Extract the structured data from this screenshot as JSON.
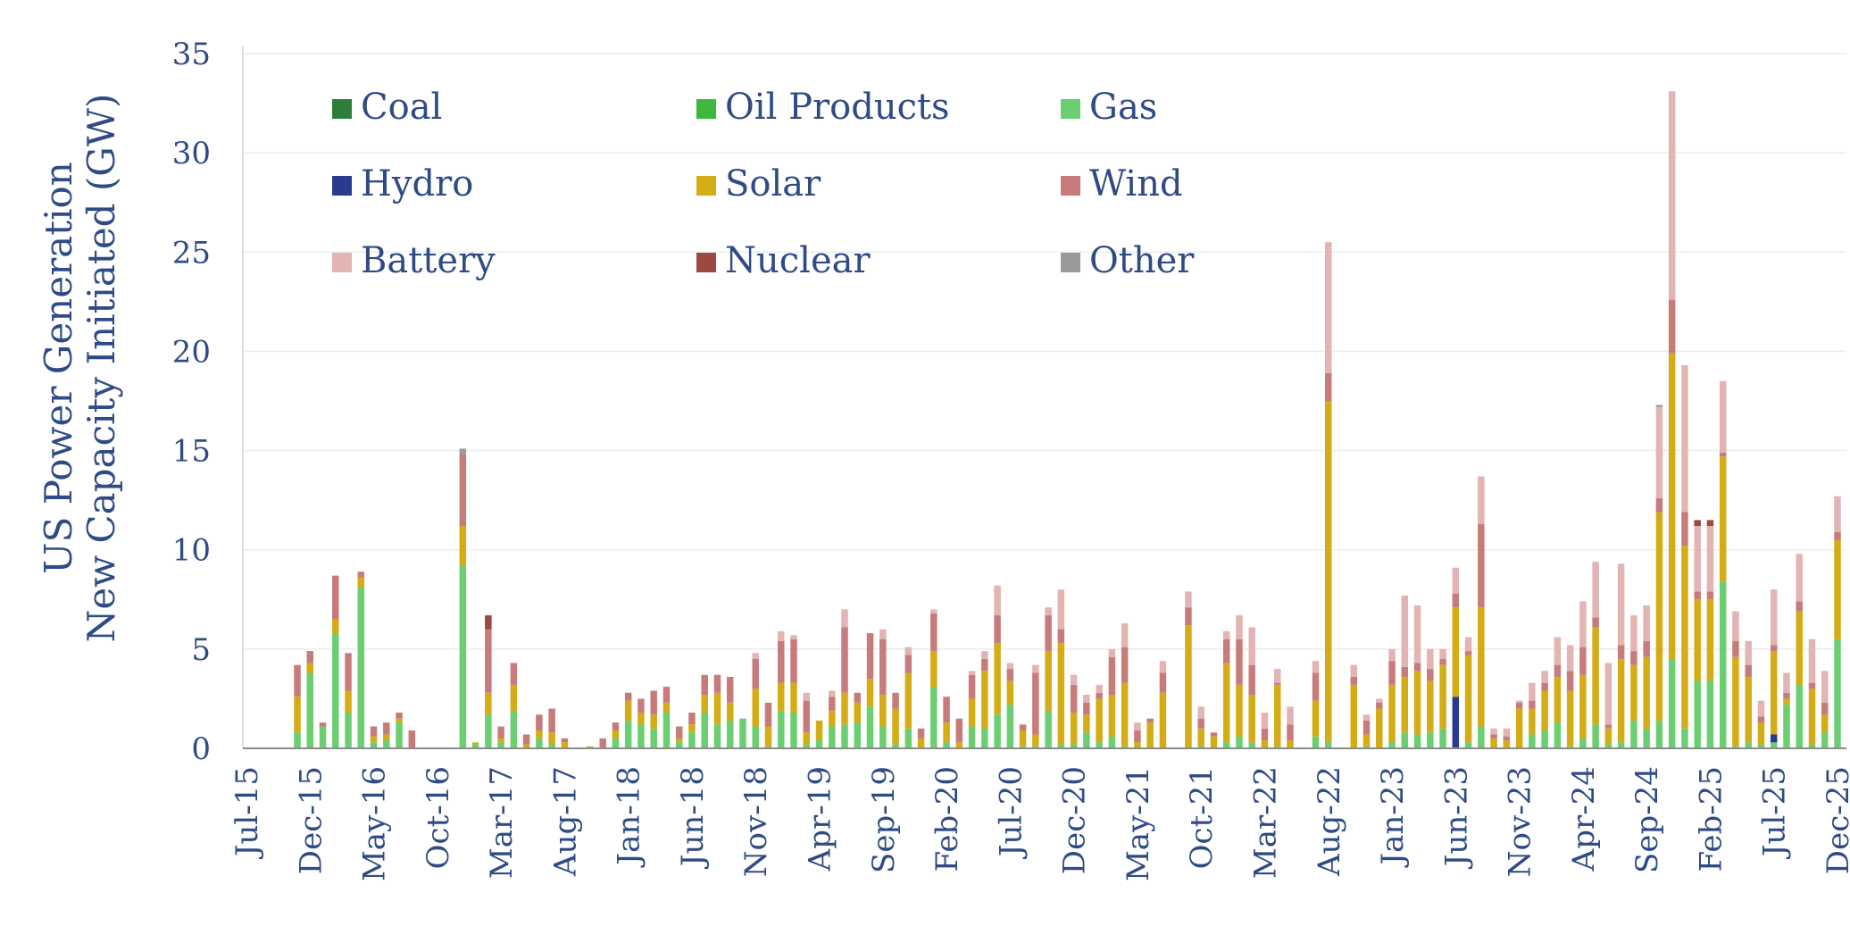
{
  "chart_data": {
    "type": "bar",
    "stacked": true,
    "ylabel": [
      "US Power Generation",
      "New Capacity Initiated (GW)"
    ],
    "ylim": [
      0,
      35
    ],
    "yticks": [
      0,
      5,
      10,
      15,
      20,
      25,
      30,
      35
    ],
    "grid": true,
    "legend_position": "top-left (inside plot area, 3 columns)",
    "x_start": "2015-07",
    "x_end": "2025-12",
    "x_ticks": [
      "Jul-15",
      "Dec-15",
      "May-16",
      "Oct-16",
      "Mar-17",
      "Aug-17",
      "Jan-18",
      "Jun-18",
      "Nov-18",
      "Apr-19",
      "Sep-19",
      "Feb-20",
      "Jul-20",
      "Dec-20",
      "May-21",
      "Oct-21",
      "Mar-22",
      "Aug-22",
      "Jan-23",
      "Jun-23",
      "Nov-23",
      "Apr-24",
      "Sep-24",
      "Feb-25",
      "Jul-25",
      "Dec-25"
    ],
    "series": [
      {
        "name": "Coal",
        "color": "#2e7d3a"
      },
      {
        "name": "Oil Products",
        "color": "#3db83d"
      },
      {
        "name": "Gas",
        "color": "#6bcf72"
      },
      {
        "name": "Hydro",
        "color": "#2a3b8f"
      },
      {
        "name": "Solar",
        "color": "#d4ac16"
      },
      {
        "name": "Wind",
        "color": "#c87b7b"
      },
      {
        "name": "Battery",
        "color": "#e2b4b4"
      },
      {
        "name": "Nuclear",
        "color": "#9b4a42"
      },
      {
        "name": "Other",
        "color": "#9a9a9a"
      }
    ],
    "bars": [
      {
        "date": "2015-11",
        "Gas": 0.8,
        "Solar": 1.8,
        "Wind": 1.6
      },
      {
        "date": "2015-12",
        "Gas": 3.8,
        "Solar": 0.5,
        "Wind": 0.6
      },
      {
        "date": "2016-01",
        "Gas": 1.1,
        "Wind": 0.2
      },
      {
        "date": "2016-02",
        "Gas": 5.8,
        "Solar": 0.7,
        "Wind": 2.2
      },
      {
        "date": "2016-03",
        "Gas": 1.8,
        "Solar": 1.1,
        "Wind": 1.9
      },
      {
        "date": "2016-04",
        "Gas": 8.1,
        "Solar": 0.5,
        "Wind": 0.3
      },
      {
        "date": "2016-05",
        "Gas": 0.3,
        "Solar": 0.3,
        "Wind": 0.5
      },
      {
        "date": "2016-06",
        "Gas": 0.4,
        "Solar": 0.3,
        "Wind": 0.6
      },
      {
        "date": "2016-07",
        "Gas": 1.3,
        "Solar": 0.2,
        "Wind": 0.3
      },
      {
        "date": "2016-08",
        "Wind": 0.9
      },
      {
        "date": "2016-12",
        "Gas": 9.2,
        "Solar": 2.0,
        "Wind": 3.6,
        "Other": 0.3
      },
      {
        "date": "2017-01",
        "Gas": 0.2,
        "Solar": 0.1
      },
      {
        "date": "2017-02",
        "Gas": 1.7,
        "Solar": 1.1,
        "Wind": 3.2,
        "Nuclear": 0.7
      },
      {
        "date": "2017-03",
        "Gas": 0.3,
        "Solar": 0.2,
        "Wind": 0.6
      },
      {
        "date": "2017-04",
        "Gas": 1.9,
        "Solar": 1.3,
        "Wind": 1.1
      },
      {
        "date": "2017-05",
        "Solar": 0.2,
        "Wind": 0.5
      },
      {
        "date": "2017-06",
        "Gas": 0.5,
        "Solar": 0.4,
        "Wind": 0.8
      },
      {
        "date": "2017-07",
        "Gas": 0.2,
        "Solar": 0.6,
        "Wind": 1.2
      },
      {
        "date": "2017-08",
        "Solar": 0.3,
        "Wind": 0.2
      },
      {
        "date": "2017-10",
        "Solar": 0.1
      },
      {
        "date": "2017-11",
        "Wind": 0.5
      },
      {
        "date": "2017-12",
        "Gas": 0.5,
        "Solar": 0.4,
        "Wind": 0.4
      },
      {
        "date": "2018-01",
        "Gas": 1.4,
        "Solar": 1.0,
        "Wind": 0.4
      },
      {
        "date": "2018-02",
        "Gas": 1.2,
        "Solar": 0.6,
        "Wind": 0.7
      },
      {
        "date": "2018-03",
        "Gas": 1.0,
        "Solar": 0.7,
        "Wind": 1.2
      },
      {
        "date": "2018-04",
        "Gas": 1.8,
        "Solar": 0.5,
        "Wind": 0.8
      },
      {
        "date": "2018-05",
        "Gas": 0.3,
        "Solar": 0.2,
        "Wind": 0.6
      },
      {
        "date": "2018-06",
        "Gas": 0.8,
        "Solar": 0.4,
        "Wind": 0.6
      },
      {
        "date": "2018-07",
        "Gas": 1.8,
        "Solar": 0.9,
        "Wind": 1.0
      },
      {
        "date": "2018-08",
        "Gas": 1.2,
        "Solar": 1.6,
        "Wind": 0.9
      },
      {
        "date": "2018-09",
        "Gas": 1.4,
        "Solar": 0.9,
        "Wind": 1.3
      },
      {
        "date": "2018-10",
        "Gas": 1.5,
        "Solar": 0.0
      },
      {
        "date": "2018-11",
        "Gas": 1.1,
        "Solar": 1.9,
        "Wind": 1.5,
        "Battery": 0.3
      },
      {
        "date": "2018-12",
        "Gas": 0.1,
        "Solar": 1.0,
        "Wind": 1.2
      },
      {
        "date": "2019-01",
        "Gas": 1.9,
        "Solar": 1.4,
        "Wind": 2.1,
        "Battery": 0.5
      },
      {
        "date": "2019-02",
        "Gas": 1.8,
        "Solar": 1.5,
        "Wind": 2.2,
        "Battery": 0.2
      },
      {
        "date": "2019-03",
        "Gas": 0.2,
        "Solar": 0.6,
        "Wind": 1.6,
        "Battery": 0.4
      },
      {
        "date": "2019-04",
        "Gas": 0.4,
        "Solar": 1.0
      },
      {
        "date": "2019-05",
        "Gas": 1.1,
        "Solar": 0.8,
        "Wind": 0.7,
        "Battery": 0.3
      },
      {
        "date": "2019-06",
        "Gas": 1.2,
        "Solar": 1.6,
        "Wind": 3.3,
        "Battery": 0.9
      },
      {
        "date": "2019-07",
        "Gas": 1.3,
        "Solar": 1.0,
        "Wind": 0.5
      },
      {
        "date": "2019-08",
        "Gas": 2.1,
        "Solar": 1.4,
        "Wind": 2.3
      },
      {
        "date": "2019-09",
        "Gas": 1.1,
        "Solar": 1.6,
        "Wind": 2.8,
        "Battery": 0.5
      },
      {
        "date": "2019-10",
        "Gas": 0.2,
        "Solar": 1.8,
        "Wind": 0.8
      },
      {
        "date": "2019-11",
        "Gas": 1.0,
        "Solar": 2.8,
        "Wind": 0.9,
        "Battery": 0.4
      },
      {
        "date": "2019-12",
        "Solar": 0.5,
        "Wind": 0.5
      },
      {
        "date": "2020-01",
        "Gas": 3.1,
        "Solar": 1.8,
        "Wind": 1.9,
        "Battery": 0.2
      },
      {
        "date": "2020-02",
        "Gas": 0.3,
        "Solar": 1.0,
        "Wind": 1.3
      },
      {
        "date": "2020-03",
        "Solar": 0.3,
        "Wind": 1.2
      },
      {
        "date": "2020-04",
        "Gas": 1.1,
        "Solar": 1.4,
        "Wind": 1.2,
        "Battery": 0.2
      },
      {
        "date": "2020-05",
        "Gas": 1.0,
        "Solar": 2.9,
        "Wind": 0.6,
        "Battery": 0.4
      },
      {
        "date": "2020-06",
        "Gas": 1.7,
        "Solar": 3.6,
        "Wind": 1.4,
        "Battery": 1.5
      },
      {
        "date": "2020-07",
        "Gas": 2.2,
        "Solar": 1.2,
        "Wind": 0.6,
        "Battery": 0.3
      },
      {
        "date": "2020-08",
        "Gas": 0.1,
        "Solar": 0.8,
        "Wind": 0.3
      },
      {
        "date": "2020-09",
        "Gas": 0.1,
        "Solar": 0.6,
        "Wind": 3.1,
        "Battery": 0.4
      },
      {
        "date": "2020-10",
        "Gas": 1.9,
        "Solar": 3.0,
        "Wind": 1.8,
        "Battery": 0.4
      },
      {
        "date": "2020-11",
        "Gas": 0.2,
        "Solar": 5.1,
        "Wind": 0.7,
        "Battery": 2.0
      },
      {
        "date": "2020-12",
        "Gas": 0.2,
        "Solar": 1.6,
        "Wind": 1.4,
        "Battery": 0.5
      },
      {
        "date": "2021-01",
        "Gas": 0.8,
        "Solar": 0.9,
        "Wind": 0.6,
        "Battery": 0.4
      },
      {
        "date": "2021-02",
        "Gas": 0.3,
        "Solar": 2.2,
        "Wind": 0.3,
        "Battery": 0.4
      },
      {
        "date": "2021-03",
        "Gas": 0.6,
        "Solar": 2.1,
        "Wind": 1.9,
        "Battery": 0.4
      },
      {
        "date": "2021-04",
        "Gas": 0.1,
        "Solar": 3.2,
        "Wind": 1.8,
        "Battery": 1.2
      },
      {
        "date": "2021-05",
        "Solar": 0.3,
        "Wind": 0.6,
        "Battery": 0.4
      },
      {
        "date": "2021-06",
        "Solar": 1.3,
        "Wind": 0.2
      },
      {
        "date": "2021-07",
        "Solar": 2.8,
        "Wind": 1.0,
        "Battery": 0.6
      },
      {
        "date": "2021-09",
        "Solar": 6.2,
        "Wind": 0.9,
        "Battery": 0.8
      },
      {
        "date": "2021-10",
        "Gas": 0.1,
        "Solar": 0.9,
        "Wind": 0.5,
        "Battery": 0.6
      },
      {
        "date": "2021-11",
        "Solar": 0.6,
        "Wind": 0.2
      },
      {
        "date": "2021-12",
        "Gas": 0.3,
        "Solar": 4.0,
        "Wind": 1.2,
        "Battery": 0.4
      },
      {
        "date": "2022-01",
        "Gas": 0.6,
        "Solar": 2.6,
        "Wind": 2.3,
        "Battery": 1.2
      },
      {
        "date": "2022-02",
        "Gas": 0.3,
        "Solar": 2.4,
        "Wind": 1.5,
        "Battery": 1.9
      },
      {
        "date": "2022-03",
        "Solar": 0.4,
        "Wind": 0.6,
        "Battery": 0.8
      },
      {
        "date": "2022-04",
        "Gas": 0.1,
        "Solar": 3.1,
        "Wind": 0.1,
        "Battery": 0.7
      },
      {
        "date": "2022-05",
        "Solar": 0.4,
        "Wind": 0.8,
        "Battery": 0.9
      },
      {
        "date": "2022-07",
        "Gas": 0.6,
        "Solar": 1.8,
        "Wind": 1.4,
        "Battery": 0.6
      },
      {
        "date": "2022-08",
        "Gas": 0.3,
        "Solar": 17.2,
        "Wind": 1.4,
        "Battery": 6.6
      },
      {
        "date": "2022-09"
      },
      {
        "date": "2022-10",
        "Solar": 3.2,
        "Wind": 0.4,
        "Battery": 0.6
      },
      {
        "date": "2022-11",
        "Gas": 0.1,
        "Solar": 0.6,
        "Wind": 0.7,
        "Battery": 0.3
      },
      {
        "date": "2022-12",
        "Solar": 2.0,
        "Wind": 0.3,
        "Battery": 0.2
      },
      {
        "date": "2023-01",
        "Gas": 0.3,
        "Solar": 2.9,
        "Wind": 1.2,
        "Battery": 0.6
      },
      {
        "date": "2023-02",
        "Gas": 0.8,
        "Solar": 2.8,
        "Wind": 0.5,
        "Battery": 3.6
      },
      {
        "date": "2023-03",
        "Gas": 0.7,
        "Solar": 3.2,
        "Wind": 0.4,
        "Battery": 2.9
      },
      {
        "date": "2023-04",
        "Gas": 0.8,
        "Solar": 2.6,
        "Wind": 0.6,
        "Battery": 1.0
      },
      {
        "date": "2023-05",
        "Gas": 1.0,
        "Solar": 3.2,
        "Wind": 0.3,
        "Battery": 0.5
      },
      {
        "date": "2023-06",
        "Hydro": 2.6,
        "Solar": 4.5,
        "Wind": 0.7,
        "Battery": 1.3
      },
      {
        "date": "2023-07",
        "Gas": 0.3,
        "Solar": 4.4,
        "Wind": 0.2,
        "Battery": 0.7
      },
      {
        "date": "2023-08",
        "Gas": 1.1,
        "Solar": 6.0,
        "Wind": 4.2,
        "Battery": 2.4
      },
      {
        "date": "2023-09",
        "Solar": 0.5,
        "Wind": 0.2,
        "Battery": 0.3
      },
      {
        "date": "2023-10",
        "Solar": 0.4,
        "Wind": 0.2,
        "Battery": 0.4
      },
      {
        "date": "2023-11",
        "Solar": 2.0,
        "Wind": 0.3,
        "Battery": 0.1
      },
      {
        "date": "2023-12",
        "Gas": 0.7,
        "Solar": 1.3,
        "Wind": 0.4,
        "Battery": 0.9
      },
      {
        "date": "2024-01",
        "Gas": 0.9,
        "Solar": 2.0,
        "Wind": 0.4,
        "Battery": 0.6
      },
      {
        "date": "2024-02",
        "Gas": 1.3,
        "Solar": 2.3,
        "Wind": 0.6,
        "Battery": 1.4
      },
      {
        "date": "2024-03",
        "Gas": 0.1,
        "Solar": 2.8,
        "Wind": 1.0,
        "Battery": 1.3
      },
      {
        "date": "2024-04",
        "Gas": 0.5,
        "Solar": 3.2,
        "Wind": 1.4,
        "Battery": 2.3
      },
      {
        "date": "2024-05",
        "Gas": 1.2,
        "Solar": 4.9,
        "Wind": 0.5,
        "Battery": 2.8
      },
      {
        "date": "2024-06",
        "Gas": 0.2,
        "Solar": 0.8,
        "Wind": 0.2,
        "Battery": 3.1
      },
      {
        "date": "2024-07",
        "Gas": 0.3,
        "Solar": 4.2,
        "Wind": 0.7,
        "Battery": 4.1
      },
      {
        "date": "2024-08",
        "Gas": 1.4,
        "Solar": 2.8,
        "Wind": 0.7,
        "Battery": 1.8
      },
      {
        "date": "2024-09",
        "Gas": 1.0,
        "Solar": 3.6,
        "Wind": 0.8,
        "Battery": 1.8
      },
      {
        "date": "2024-10",
        "Gas": 1.4,
        "Solar": 10.5,
        "Wind": 0.7,
        "Battery": 4.6,
        "Other": 0.1
      },
      {
        "date": "2024-11",
        "Gas": 4.5,
        "Solar": 15.4,
        "Wind": 2.7,
        "Battery": 10.5
      },
      {
        "date": "2024-12",
        "Gas": 1.0,
        "Solar": 9.2,
        "Wind": 1.7,
        "Battery": 7.4
      },
      {
        "date": "2025-01",
        "Gas": 3.4,
        "Solar": 4.1,
        "Wind": 0.4,
        "Battery": 3.3,
        "Nuclear": 0.3
      },
      {
        "date": "2025-02",
        "Gas": 3.4,
        "Solar": 4.1,
        "Wind": 0.4,
        "Battery": 3.3,
        "Nuclear": 0.3
      },
      {
        "date": "2025-03",
        "Gas": 8.4,
        "Solar": 6.3,
        "Wind": 0.2,
        "Battery": 3.6
      },
      {
        "date": "2025-04",
        "Gas": 0.1,
        "Solar": 4.5,
        "Wind": 0.8,
        "Battery": 1.5
      },
      {
        "date": "2025-05",
        "Gas": 0.3,
        "Solar": 3.3,
        "Wind": 0.6,
        "Battery": 1.2
      },
      {
        "date": "2025-06",
        "Gas": 0.2,
        "Solar": 1.1,
        "Wind": 0.3,
        "Battery": 0.8
      },
      {
        "date": "2025-07",
        "Gas": 0.3,
        "Hydro": 0.4,
        "Solar": 4.2,
        "Wind": 0.3,
        "Battery": 2.8
      },
      {
        "date": "2025-08",
        "Gas": 2.2,
        "Solar": 0.3,
        "Wind": 0.3,
        "Battery": 1.0
      },
      {
        "date": "2025-09",
        "Gas": 3.2,
        "Solar": 3.7,
        "Wind": 0.5,
        "Battery": 2.4
      },
      {
        "date": "2025-10",
        "Gas": 0.2,
        "Solar": 2.8,
        "Wind": 0.3,
        "Battery": 2.2
      },
      {
        "date": "2025-11",
        "Gas": 0.8,
        "Solar": 0.9,
        "Wind": 0.6,
        "Battery": 1.6
      },
      {
        "date": "2025-12",
        "Gas": 5.5,
        "Solar": 5.0,
        "Wind": 0.4,
        "Battery": 1.8
      }
    ]
  }
}
